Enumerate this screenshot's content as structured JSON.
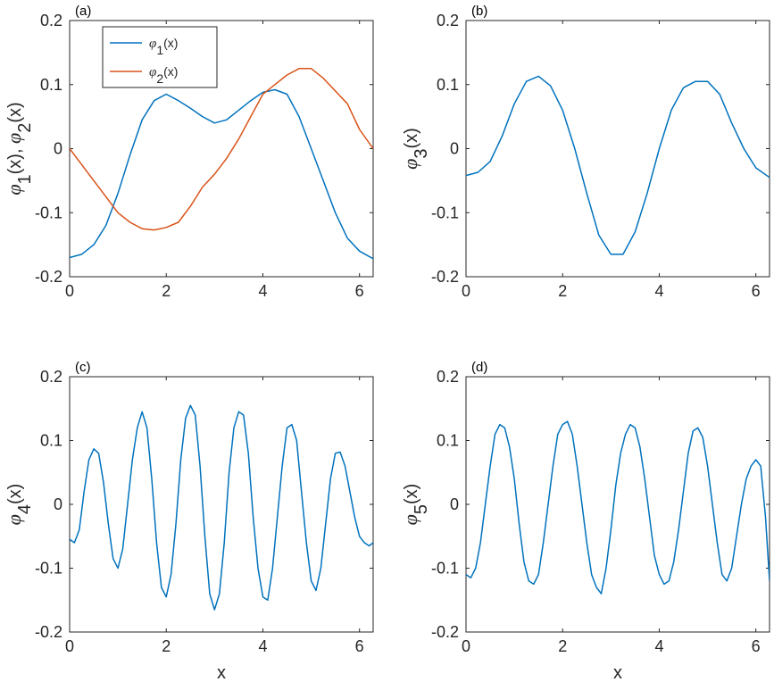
{
  "colors": {
    "blue": "#0072BD",
    "orange": "#D95319",
    "axis": "#262626"
  },
  "chart_data": [
    {
      "type": "line",
      "tag": "(a)",
      "ylabel": "φ1(x), φ2(x)",
      "xlabel": "",
      "xlim": [
        0,
        6.283
      ],
      "ylim": [
        -0.2,
        0.2
      ],
      "xticks": [
        0,
        2,
        4,
        6
      ],
      "yticks": [
        -0.2,
        -0.1,
        0,
        0.1,
        0.2
      ],
      "xtick_labels": [
        "0",
        "2",
        "4",
        "6"
      ],
      "ytick_labels": [
        "-0.2",
        "-0.1",
        "0",
        "0.1",
        "0.2"
      ],
      "legend": {
        "placement": "top-left",
        "entries": [
          "φ1(x)",
          "φ2(x)"
        ]
      },
      "series": [
        {
          "name": "φ1(x)",
          "color": "#0072BD",
          "x": [
            0,
            0.25,
            0.5,
            0.75,
            1.0,
            1.25,
            1.5,
            1.75,
            2.0,
            2.25,
            2.5,
            2.75,
            3.0,
            3.25,
            3.5,
            3.75,
            4.0,
            4.25,
            4.5,
            4.75,
            5.0,
            5.25,
            5.5,
            5.75,
            6.0,
            6.283
          ],
          "values": [
            -0.17,
            -0.165,
            -0.15,
            -0.12,
            -0.07,
            -0.01,
            0.045,
            0.075,
            0.085,
            0.075,
            0.063,
            0.05,
            0.04,
            0.045,
            0.06,
            0.075,
            0.088,
            0.092,
            0.085,
            0.05,
            0.0,
            -0.05,
            -0.1,
            -0.14,
            -0.16,
            -0.172
          ]
        },
        {
          "name": "φ2(x)",
          "color": "#D95319",
          "x": [
            0,
            0.25,
            0.5,
            0.75,
            1.0,
            1.25,
            1.5,
            1.75,
            2.0,
            2.25,
            2.5,
            2.75,
            3.0,
            3.25,
            3.5,
            3.75,
            4.0,
            4.25,
            4.5,
            4.75,
            5.0,
            5.25,
            5.5,
            5.75,
            6.0,
            6.283
          ],
          "values": [
            0.0,
            -0.025,
            -0.05,
            -0.075,
            -0.1,
            -0.115,
            -0.125,
            -0.127,
            -0.123,
            -0.115,
            -0.09,
            -0.06,
            -0.04,
            -0.015,
            0.015,
            0.05,
            0.085,
            0.1,
            0.115,
            0.125,
            0.125,
            0.11,
            0.09,
            0.07,
            0.03,
            0.0
          ]
        }
      ]
    },
    {
      "type": "line",
      "tag": "(b)",
      "ylabel": "φ3(x)",
      "xlabel": "",
      "xlim": [
        0,
        6.283
      ],
      "ylim": [
        -0.2,
        0.2
      ],
      "xticks": [
        0,
        2,
        4,
        6
      ],
      "yticks": [
        -0.2,
        -0.1,
        0,
        0.1,
        0.2
      ],
      "xtick_labels": [
        "0",
        "2",
        "4",
        "6"
      ],
      "ytick_labels": [
        "-0.2",
        "-0.1",
        "0",
        "0.1",
        "0.2"
      ],
      "series": [
        {
          "color": "#0072BD",
          "x": [
            0,
            0.25,
            0.5,
            0.75,
            1.0,
            1.25,
            1.5,
            1.75,
            2.0,
            2.25,
            2.5,
            2.75,
            3.0,
            3.25,
            3.5,
            3.75,
            4.0,
            4.25,
            4.5,
            4.75,
            5.0,
            5.25,
            5.5,
            5.75,
            6.0,
            6.283
          ],
          "values": [
            -0.042,
            -0.037,
            -0.02,
            0.02,
            0.07,
            0.105,
            0.113,
            0.098,
            0.06,
            0.0,
            -0.07,
            -0.135,
            -0.165,
            -0.165,
            -0.13,
            -0.07,
            0.0,
            0.06,
            0.095,
            0.105,
            0.105,
            0.085,
            0.04,
            0.0,
            -0.03,
            -0.045
          ]
        }
      ]
    },
    {
      "type": "line",
      "tag": "(c)",
      "ylabel": "φ4(x)",
      "xlabel": "x",
      "xlim": [
        0,
        6.283
      ],
      "ylim": [
        -0.2,
        0.2
      ],
      "xticks": [
        0,
        2,
        4,
        6
      ],
      "yticks": [
        -0.2,
        -0.1,
        0,
        0.1,
        0.2
      ],
      "xtick_labels": [
        "0",
        "2",
        "4",
        "6"
      ],
      "ytick_labels": [
        "-0.2",
        "-0.1",
        "0",
        "0.1",
        "0.2"
      ],
      "series": [
        {
          "color": "#0072BD",
          "x": [
            0,
            0.1,
            0.2,
            0.3,
            0.4,
            0.5,
            0.6,
            0.7,
            0.8,
            0.9,
            1.0,
            1.1,
            1.2,
            1.3,
            1.4,
            1.5,
            1.6,
            1.7,
            1.8,
            1.9,
            2.0,
            2.1,
            2.2,
            2.3,
            2.4,
            2.5,
            2.6,
            2.7,
            2.8,
            2.9,
            3.0,
            3.1,
            3.2,
            3.3,
            3.4,
            3.5,
            3.6,
            3.7,
            3.8,
            3.9,
            4.0,
            4.1,
            4.2,
            4.3,
            4.4,
            4.5,
            4.6,
            4.7,
            4.8,
            4.9,
            5.0,
            5.1,
            5.2,
            5.3,
            5.4,
            5.5,
            5.6,
            5.7,
            5.8,
            5.9,
            6.0,
            6.1,
            6.2,
            6.283
          ],
          "values": [
            -0.055,
            -0.06,
            -0.04,
            0.02,
            0.07,
            0.087,
            0.08,
            0.035,
            -0.03,
            -0.085,
            -0.1,
            -0.07,
            0.0,
            0.07,
            0.12,
            0.145,
            0.12,
            0.04,
            -0.06,
            -0.13,
            -0.145,
            -0.11,
            -0.03,
            0.07,
            0.135,
            0.155,
            0.14,
            0.06,
            -0.05,
            -0.14,
            -0.165,
            -0.14,
            -0.06,
            0.05,
            0.12,
            0.145,
            0.14,
            0.08,
            -0.02,
            -0.1,
            -0.145,
            -0.15,
            -0.1,
            -0.02,
            0.06,
            0.12,
            0.125,
            0.1,
            0.02,
            -0.06,
            -0.12,
            -0.135,
            -0.1,
            -0.03,
            0.04,
            0.08,
            0.082,
            0.06,
            0.02,
            -0.02,
            -0.05,
            -0.06,
            -0.065,
            -0.06
          ]
        }
      ]
    },
    {
      "type": "line",
      "tag": "(d)",
      "ylabel": "φ5(x)",
      "xlabel": "x",
      "xlim": [
        0,
        6.283
      ],
      "ylim": [
        -0.2,
        0.2
      ],
      "xticks": [
        0,
        2,
        4,
        6
      ],
      "yticks": [
        -0.2,
        -0.1,
        0,
        0.1,
        0.2
      ],
      "xtick_labels": [
        "0",
        "2",
        "4",
        "6"
      ],
      "ytick_labels": [
        "-0.2",
        "-0.1",
        "0",
        "0.1",
        "0.2"
      ],
      "series": [
        {
          "color": "#0072BD",
          "x": [
            0,
            0.1,
            0.2,
            0.3,
            0.4,
            0.5,
            0.6,
            0.7,
            0.8,
            0.9,
            1.0,
            1.1,
            1.2,
            1.3,
            1.4,
            1.5,
            1.6,
            1.7,
            1.8,
            1.9,
            2.0,
            2.1,
            2.2,
            2.3,
            2.4,
            2.5,
            2.6,
            2.7,
            2.8,
            2.9,
            3.0,
            3.1,
            3.2,
            3.3,
            3.4,
            3.5,
            3.6,
            3.7,
            3.8,
            3.9,
            4.0,
            4.1,
            4.2,
            4.3,
            4.4,
            4.5,
            4.6,
            4.7,
            4.8,
            4.9,
            5.0,
            5.1,
            5.2,
            5.3,
            5.4,
            5.5,
            5.6,
            5.7,
            5.8,
            5.9,
            6.0,
            6.1,
            6.2,
            6.283
          ],
          "values": [
            -0.11,
            -0.115,
            -0.1,
            -0.06,
            0.0,
            0.06,
            0.11,
            0.125,
            0.12,
            0.09,
            0.04,
            -0.03,
            -0.09,
            -0.12,
            -0.125,
            -0.11,
            -0.06,
            0.0,
            0.06,
            0.11,
            0.125,
            0.13,
            0.11,
            0.06,
            0.0,
            -0.06,
            -0.11,
            -0.13,
            -0.14,
            -0.1,
            -0.04,
            0.03,
            0.08,
            0.11,
            0.125,
            0.12,
            0.09,
            0.04,
            -0.02,
            -0.08,
            -0.11,
            -0.125,
            -0.12,
            -0.09,
            -0.04,
            0.02,
            0.08,
            0.115,
            0.12,
            0.105,
            0.06,
            0.0,
            -0.06,
            -0.11,
            -0.12,
            -0.1,
            -0.05,
            0.0,
            0.04,
            0.06,
            0.07,
            0.06,
            -0.02,
            -0.12
          ]
        }
      ]
    }
  ]
}
